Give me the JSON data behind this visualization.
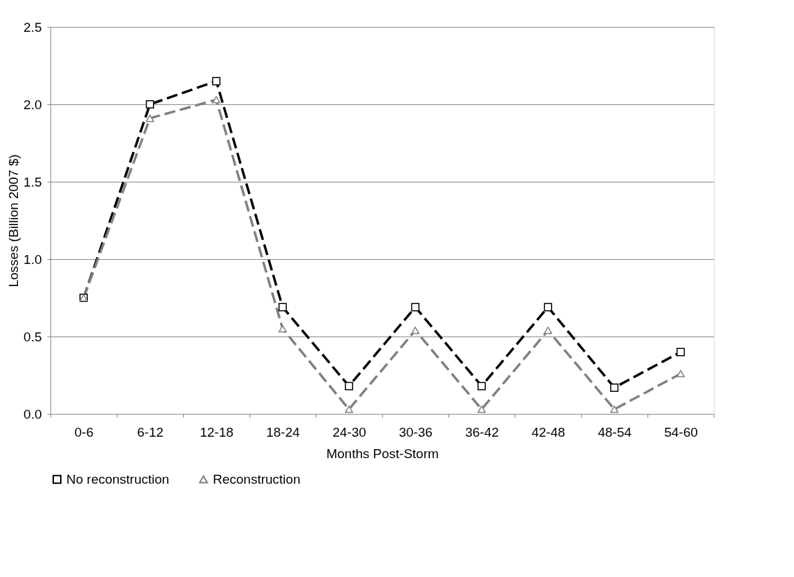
{
  "chart_data": {
    "type": "line",
    "xlabel": "Months Post-Storm",
    "ylabel": "Losses (Billion 2007 $)",
    "categories": [
      "0-6",
      "6-12",
      "12-18",
      "18-24",
      "24-30",
      "30-36",
      "36-42",
      "42-48",
      "48-54",
      "54-60"
    ],
    "series": [
      {
        "name": "No reconstruction",
        "color": "#000000",
        "marker": "square",
        "values": [
          0.75,
          2.0,
          2.15,
          0.69,
          0.18,
          0.69,
          0.18,
          0.69,
          0.17,
          0.4
        ]
      },
      {
        "name": "Reconstruction",
        "color": "#808080",
        "marker": "triangle",
        "values": [
          0.75,
          1.91,
          2.03,
          0.55,
          0.03,
          0.54,
          0.03,
          0.54,
          0.03,
          0.26
        ]
      }
    ],
    "ylim": [
      0,
      2.5
    ],
    "yticks": [
      {
        "value": 0,
        "label": "0.0"
      },
      {
        "value": 0.5,
        "label": "0.5"
      },
      {
        "value": 1,
        "label": "1.0"
      },
      {
        "value": 1.5,
        "label": "1.5"
      },
      {
        "value": 2,
        "label": "2.0"
      },
      {
        "value": 2.5,
        "label": "2.5"
      }
    ],
    "grid": "y",
    "legend": "bottom",
    "line_style": "dashed"
  }
}
